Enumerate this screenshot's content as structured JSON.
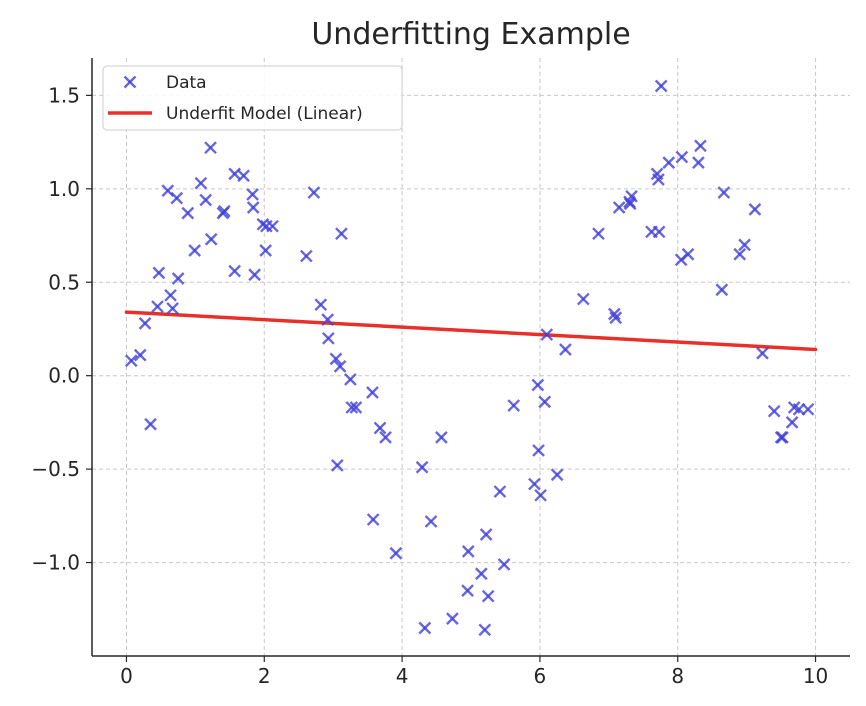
{
  "chart_data": {
    "type": "scatter",
    "title": "Underfitting Example",
    "xlabel": "",
    "ylabel": "",
    "xlim": [
      -0.5,
      10.5
    ],
    "ylim": [
      -1.5,
      1.7
    ],
    "xticks": [
      0,
      2,
      4,
      6,
      8,
      10
    ],
    "xtick_labels": [
      "0",
      "2",
      "4",
      "6",
      "8",
      "10"
    ],
    "yticks": [
      -1.0,
      -0.5,
      0.0,
      0.5,
      1.0,
      1.5
    ],
    "ytick_labels": [
      "−1.0",
      "−0.5",
      "0.0",
      "0.5",
      "1.0",
      "1.5"
    ],
    "grid": true,
    "legend_position": "top-left",
    "series": [
      {
        "name": "Data",
        "kind": "scatter",
        "marker": "x",
        "color": "#4040d8",
        "points": [
          [
            0.07,
            0.08
          ],
          [
            0.2,
            0.11
          ],
          [
            0.27,
            0.28
          ],
          [
            0.35,
            -0.26
          ],
          [
            0.45,
            0.37
          ],
          [
            0.47,
            0.55
          ],
          [
            0.6,
            0.99
          ],
          [
            0.64,
            0.43
          ],
          [
            0.67,
            0.36
          ],
          [
            0.73,
            0.95
          ],
          [
            0.75,
            0.52
          ],
          [
            0.89,
            0.87
          ],
          [
            0.99,
            0.67
          ],
          [
            1.08,
            1.03
          ],
          [
            1.15,
            0.94
          ],
          [
            1.22,
            1.22
          ],
          [
            1.23,
            0.73
          ],
          [
            1.4,
            0.87
          ],
          [
            1.42,
            0.88
          ],
          [
            1.57,
            1.08
          ],
          [
            1.57,
            0.56
          ],
          [
            1.7,
            1.07
          ],
          [
            1.83,
            0.97
          ],
          [
            1.84,
            0.9
          ],
          [
            1.86,
            0.54
          ],
          [
            1.98,
            0.81
          ],
          [
            2.02,
            0.67
          ],
          [
            2.03,
            0.8
          ],
          [
            2.12,
            0.8
          ],
          [
            2.61,
            0.64
          ],
          [
            2.72,
            0.98
          ],
          [
            2.82,
            0.38
          ],
          [
            2.92,
            0.3
          ],
          [
            2.93,
            0.2
          ],
          [
            3.04,
            0.09
          ],
          [
            3.06,
            -0.48
          ],
          [
            3.1,
            0.05
          ],
          [
            3.12,
            0.76
          ],
          [
            3.25,
            -0.02
          ],
          [
            3.27,
            -0.17
          ],
          [
            3.33,
            -0.17
          ],
          [
            3.57,
            -0.09
          ],
          [
            3.58,
            -0.77
          ],
          [
            3.68,
            -0.28
          ],
          [
            3.76,
            -0.33
          ],
          [
            3.91,
            -0.95
          ],
          [
            4.29,
            -0.49
          ],
          [
            4.33,
            -1.35
          ],
          [
            4.42,
            -0.78
          ],
          [
            4.57,
            -0.33
          ],
          [
            4.73,
            -1.3
          ],
          [
            4.95,
            -1.15
          ],
          [
            4.96,
            -0.94
          ],
          [
            5.15,
            -1.06
          ],
          [
            5.2,
            -1.36
          ],
          [
            5.22,
            -0.85
          ],
          [
            5.25,
            -1.18
          ],
          [
            5.42,
            -0.62
          ],
          [
            5.48,
            -1.01
          ],
          [
            5.62,
            -0.16
          ],
          [
            5.92,
            -0.58
          ],
          [
            5.97,
            -0.05
          ],
          [
            5.98,
            -0.4
          ],
          [
            6.01,
            -0.64
          ],
          [
            6.07,
            -0.14
          ],
          [
            6.1,
            0.22
          ],
          [
            6.25,
            -0.53
          ],
          [
            6.37,
            0.14
          ],
          [
            6.63,
            0.41
          ],
          [
            6.85,
            0.76
          ],
          [
            7.08,
            0.33
          ],
          [
            7.1,
            0.31
          ],
          [
            7.15,
            0.9
          ],
          [
            7.3,
            0.93
          ],
          [
            7.31,
            0.92
          ],
          [
            7.33,
            0.96
          ],
          [
            7.62,
            0.77
          ],
          [
            7.7,
            1.08
          ],
          [
            7.72,
            1.05
          ],
          [
            7.73,
            0.77
          ],
          [
            7.76,
            1.55
          ],
          [
            7.87,
            1.14
          ],
          [
            8.05,
            0.62
          ],
          [
            8.06,
            1.17
          ],
          [
            8.15,
            0.65
          ],
          [
            8.3,
            1.14
          ],
          [
            8.33,
            1.23
          ],
          [
            8.64,
            0.46
          ],
          [
            8.67,
            0.98
          ],
          [
            8.9,
            0.65
          ],
          [
            8.97,
            0.7
          ],
          [
            9.12,
            0.89
          ],
          [
            9.23,
            0.12
          ],
          [
            9.4,
            -0.19
          ],
          [
            9.5,
            -0.33
          ],
          [
            9.52,
            -0.33
          ],
          [
            9.66,
            -0.25
          ],
          [
            9.69,
            -0.17
          ],
          [
            9.76,
            -0.18
          ],
          [
            9.89,
            -0.18
          ]
        ]
      },
      {
        "name": "Underfit Model (Linear)",
        "kind": "line",
        "color": "#e8302a",
        "x": [
          0,
          10
        ],
        "y": [
          0.34,
          0.14
        ]
      }
    ]
  }
}
